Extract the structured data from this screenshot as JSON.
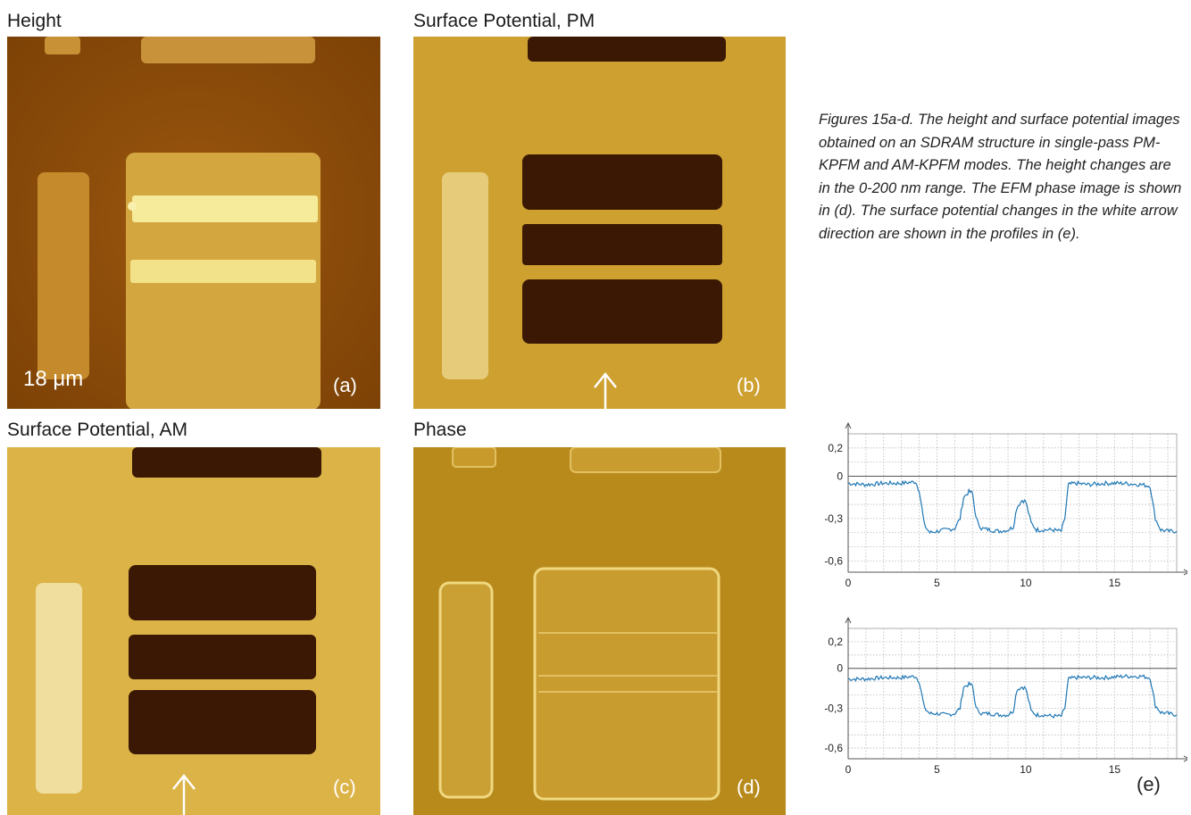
{
  "panels": {
    "a": {
      "title": "Height",
      "label": "(a)",
      "scale": "18 μm"
    },
    "b": {
      "title": "Surface Potential, PM",
      "label": "(b)"
    },
    "c": {
      "title": "Surface Potential, AM",
      "label": "(c)"
    },
    "d": {
      "title": "Phase",
      "label": "(d)"
    }
  },
  "caption": "Figures 15a-d. The height and surface potential images obtained on an SDRAM structure in single-pass PM-KPFM and AM-KPFM modes. The height changes are in the 0-200 nm range. The EFM phase image is shown in (d). The surface potential changes in the white arrow direction are shown in the profiles in (e).",
  "profile_label": "(e)",
  "colors": {
    "line": "#1f77b4",
    "height_bg": "#8a4a08",
    "pad": "#d4a83a",
    "bright": "#f6eb9a",
    "pm_bg": "#c89a2c",
    "dark_pad": "#3a1804",
    "am_bg": "#d9ad3e",
    "phase_bg": "#b88a1c"
  },
  "chart_data": [
    {
      "type": "line",
      "xlim": [
        0,
        18.5
      ],
      "ylim": [
        -0.68,
        0.3
      ],
      "xticks": [
        0,
        5,
        10,
        15
      ],
      "xtick_labels": [
        "0",
        "5",
        "10",
        "15"
      ],
      "yticks": [
        0.2,
        0,
        -0.3,
        -0.6
      ],
      "ytick_labels": [
        "0,2",
        "0",
        "-0,3",
        "-0,6"
      ],
      "grid": true,
      "series": [
        {
          "x": [
            0,
            1,
            2,
            3,
            3.8,
            4.0,
            4.3,
            4.6,
            5.0,
            5.5,
            6.0,
            6.3,
            6.5,
            6.8,
            7.0,
            7.2,
            7.5,
            8.0,
            8.5,
            9.0,
            9.3,
            9.5,
            9.8,
            10.0,
            10.3,
            10.6,
            11.0,
            11.5,
            12.0,
            12.2,
            12.4,
            12.8,
            13.5,
            14.5,
            15.5,
            16.5,
            17.0,
            17.3,
            17.6,
            18.0,
            18.5
          ],
          "y": [
            -0.05,
            -0.06,
            -0.05,
            -0.05,
            -0.04,
            -0.1,
            -0.35,
            -0.4,
            -0.39,
            -0.38,
            -0.37,
            -0.3,
            -0.15,
            -0.11,
            -0.12,
            -0.3,
            -0.37,
            -0.38,
            -0.39,
            -0.38,
            -0.36,
            -0.22,
            -0.17,
            -0.18,
            -0.33,
            -0.38,
            -0.38,
            -0.38,
            -0.39,
            -0.3,
            -0.06,
            -0.05,
            -0.06,
            -0.05,
            -0.05,
            -0.06,
            -0.07,
            -0.3,
            -0.38,
            -0.39,
            -0.39
          ]
        }
      ]
    },
    {
      "type": "line",
      "xlim": [
        0,
        18.5
      ],
      "ylim": [
        -0.68,
        0.3
      ],
      "xticks": [
        0,
        5,
        10,
        15
      ],
      "xtick_labels": [
        "0",
        "5",
        "10",
        "15"
      ],
      "yticks": [
        0.2,
        0,
        -0.3,
        -0.6
      ],
      "ytick_labels": [
        "0,2",
        "0",
        "-0,3",
        "-0,6"
      ],
      "grid": true,
      "series": [
        {
          "x": [
            0,
            1,
            2,
            3,
            3.8,
            4.0,
            4.3,
            4.6,
            5.0,
            5.5,
            6.0,
            6.3,
            6.5,
            6.8,
            7.0,
            7.2,
            7.5,
            8.0,
            8.5,
            9.0,
            9.3,
            9.5,
            9.8,
            10.0,
            10.3,
            10.6,
            11.0,
            11.5,
            12.0,
            12.2,
            12.4,
            12.8,
            13.5,
            14.5,
            15.5,
            16.5,
            17.0,
            17.3,
            17.6,
            18.0,
            18.5
          ],
          "y": [
            -0.08,
            -0.08,
            -0.07,
            -0.07,
            -0.06,
            -0.1,
            -0.3,
            -0.34,
            -0.34,
            -0.35,
            -0.34,
            -0.3,
            -0.14,
            -0.12,
            -0.13,
            -0.3,
            -0.34,
            -0.34,
            -0.35,
            -0.35,
            -0.32,
            -0.16,
            -0.14,
            -0.15,
            -0.32,
            -0.35,
            -0.35,
            -0.36,
            -0.36,
            -0.3,
            -0.08,
            -0.07,
            -0.07,
            -0.07,
            -0.06,
            -0.06,
            -0.07,
            -0.28,
            -0.33,
            -0.34,
            -0.35
          ]
        }
      ]
    }
  ]
}
